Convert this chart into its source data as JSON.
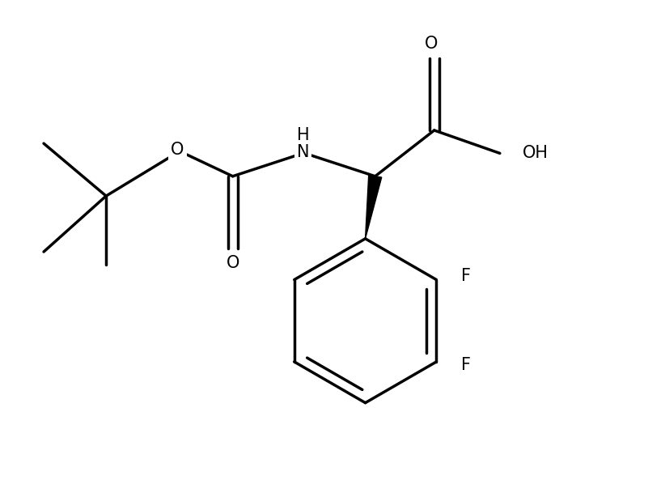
{
  "background_color": "#ffffff",
  "line_color": "#000000",
  "line_width": 2.5,
  "font_size": 15,
  "figsize": [
    8.22,
    6.14
  ],
  "dpi": 100,
  "xlim": [
    0,
    10
  ],
  "ylim": [
    0,
    7.5
  ]
}
